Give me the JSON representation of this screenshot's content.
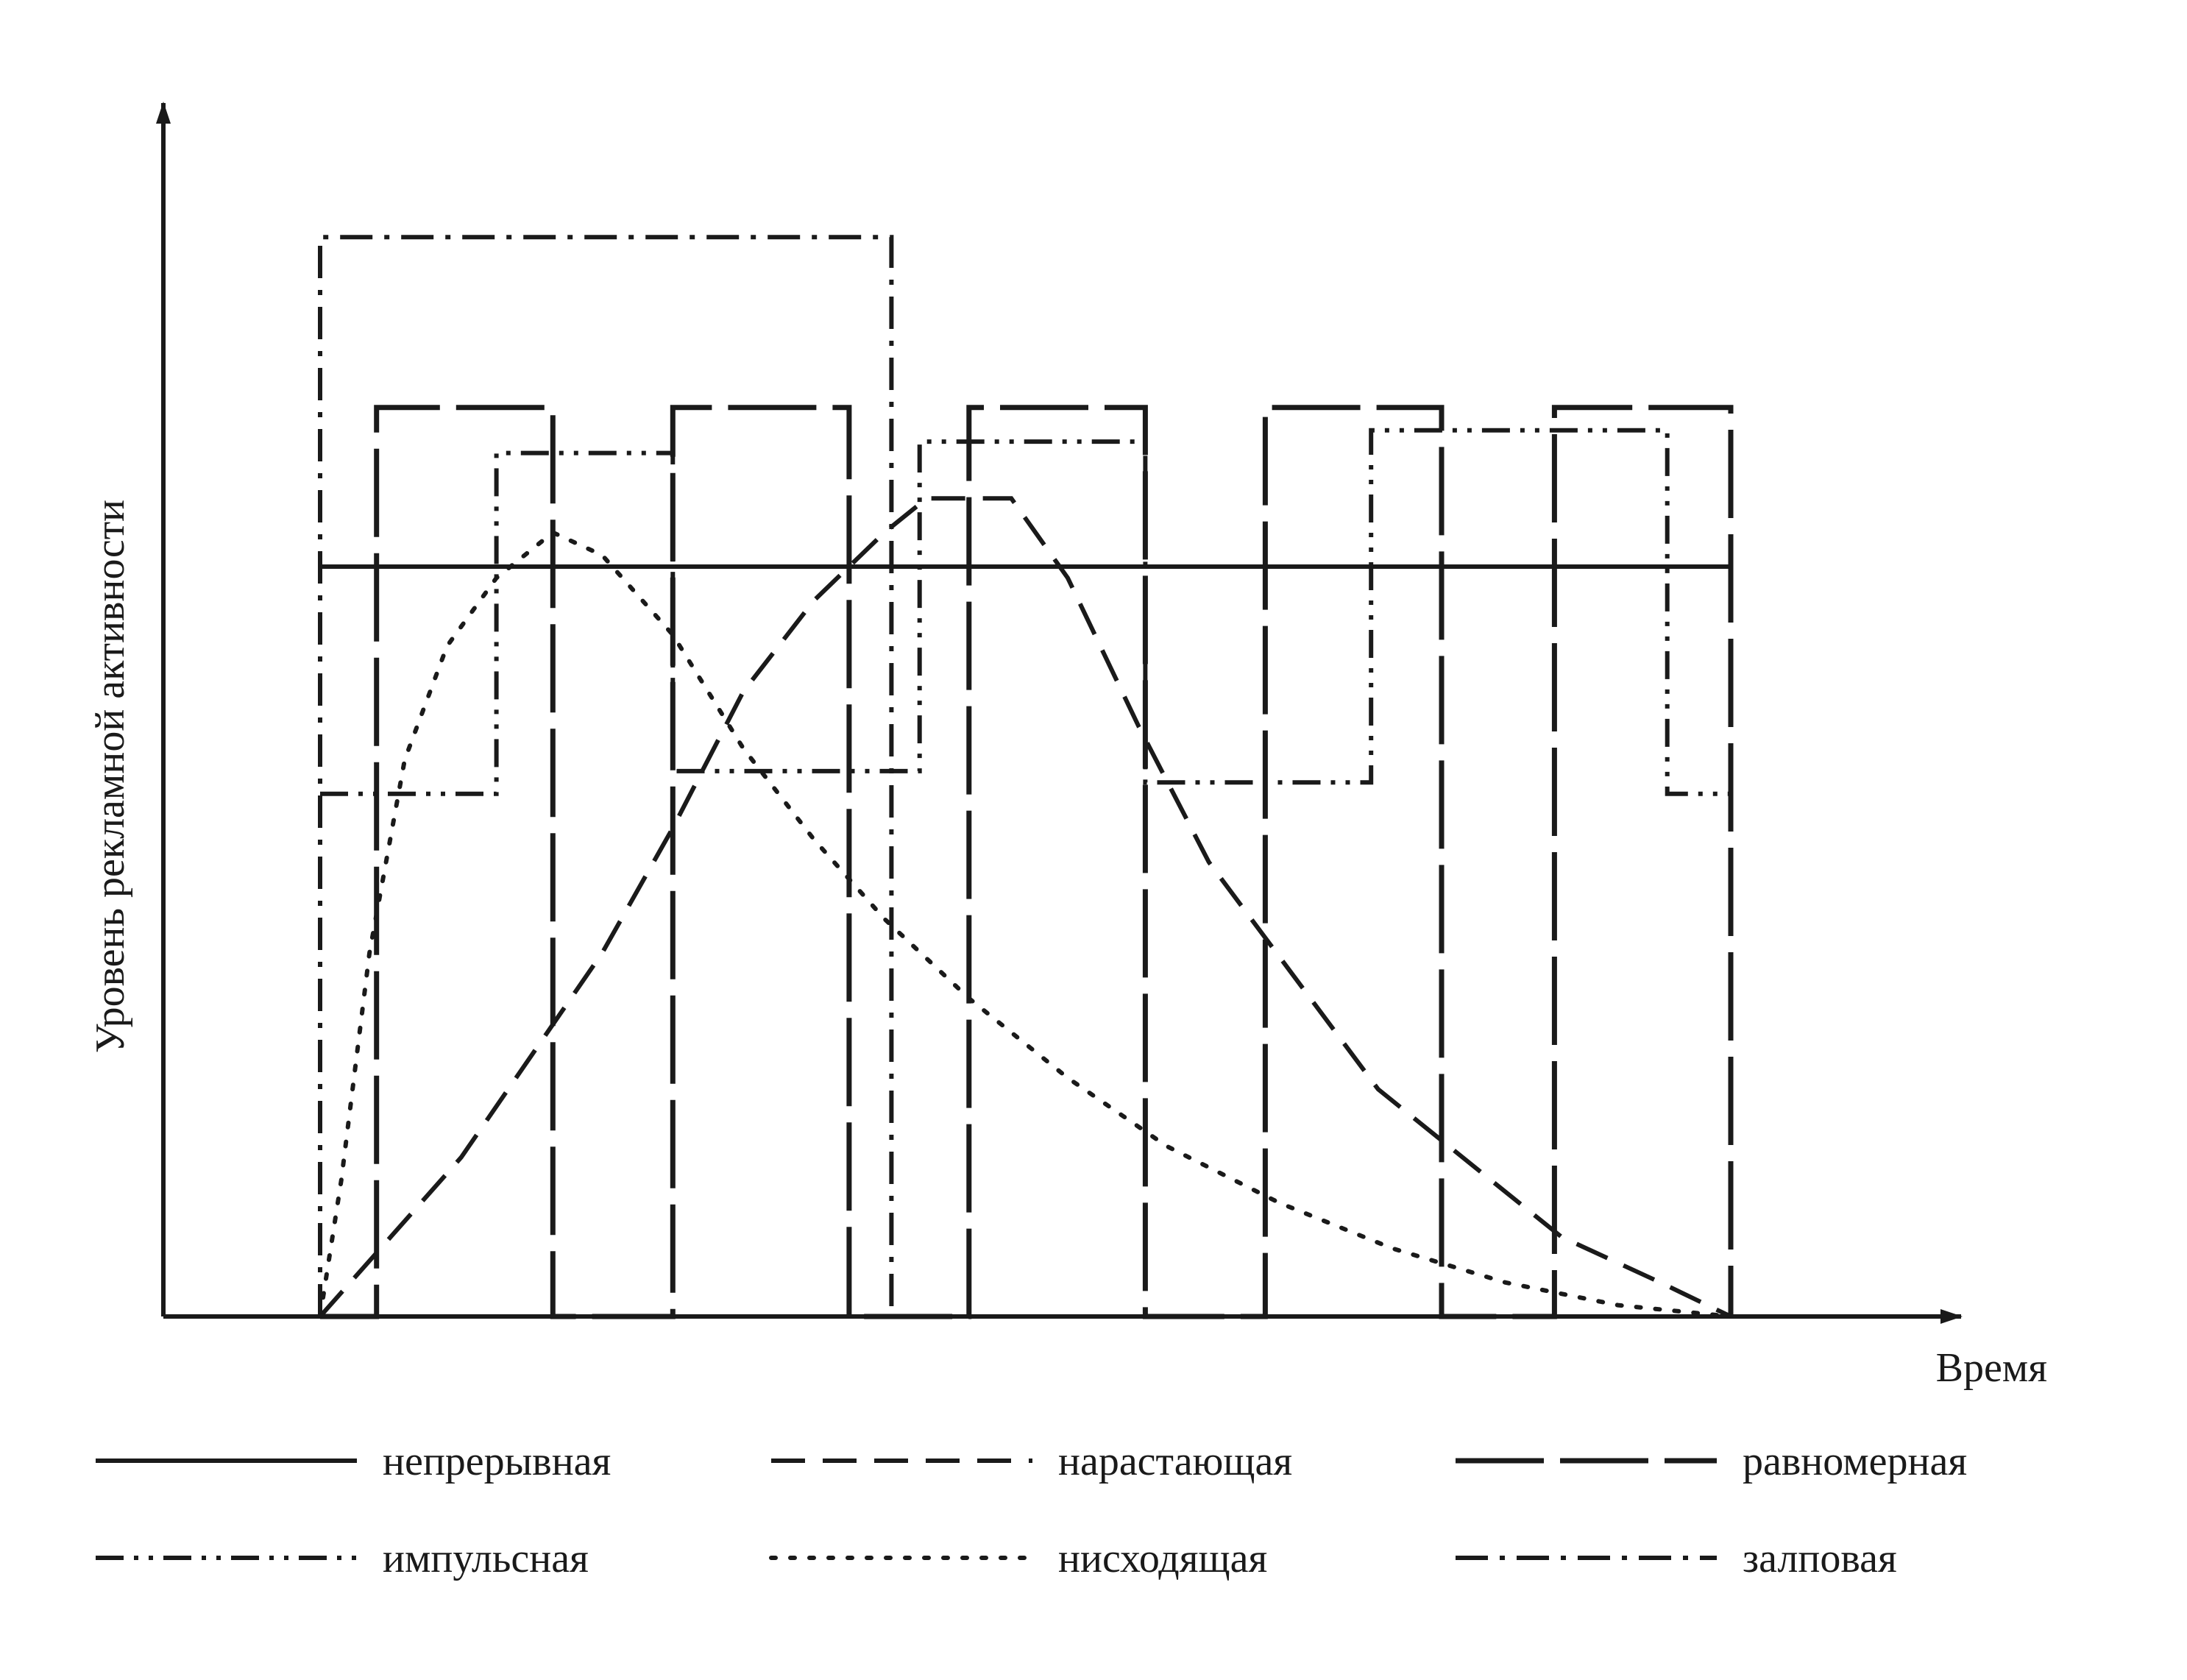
{
  "chart_data": {
    "type": "line",
    "title": "",
    "xlabel": "Время",
    "ylabel": "Уровень рекламной активности",
    "grid": false,
    "legend_position": "bottom",
    "x_range": [
      0,
      10
    ],
    "y_range": [
      0,
      10
    ],
    "series": [
      {
        "name": "непрерывная",
        "style": "solid",
        "points": [
          [
            0,
            6.6
          ],
          [
            10,
            6.6
          ]
        ]
      },
      {
        "name": "нарастающая",
        "style": "dashed",
        "points": [
          [
            0,
            0
          ],
          [
            0.5,
            0.7
          ],
          [
            1,
            1.4
          ],
          [
            1.5,
            2.3
          ],
          [
            2,
            3.2
          ],
          [
            2.5,
            4.3
          ],
          [
            3,
            5.5
          ],
          [
            3.5,
            6.3
          ],
          [
            4,
            6.9
          ],
          [
            4.3,
            7.2
          ],
          [
            4.9,
            7.2
          ],
          [
            5.3,
            6.5
          ],
          [
            5.8,
            5.2
          ],
          [
            6.3,
            4.0
          ],
          [
            6.9,
            3.0
          ],
          [
            7.5,
            2.0
          ],
          [
            8.2,
            1.3
          ],
          [
            8.8,
            0.7
          ],
          [
            9.5,
            0.3
          ],
          [
            10,
            0
          ]
        ]
      },
      {
        "name": "равномерная",
        "style": "long-dash",
        "points": [
          [
            0,
            0
          ],
          [
            0.4,
            0
          ],
          [
            0.4,
            8.0
          ],
          [
            1.65,
            8.0
          ],
          [
            1.65,
            0
          ],
          [
            2.5,
            0
          ],
          [
            2.5,
            8.0
          ],
          [
            3.75,
            8.0
          ],
          [
            3.75,
            0
          ],
          [
            4.6,
            0
          ],
          [
            4.6,
            8.0
          ],
          [
            5.85,
            8.0
          ],
          [
            5.85,
            0
          ],
          [
            6.7,
            0
          ],
          [
            6.7,
            8.0
          ],
          [
            7.95,
            8.0
          ],
          [
            7.95,
            0
          ],
          [
            8.75,
            0
          ],
          [
            8.75,
            8.0
          ],
          [
            10,
            8.0
          ],
          [
            10,
            0
          ]
        ]
      },
      {
        "name": "импульсная",
        "style": "dash-dot-dot",
        "points": [
          [
            0,
            4.6
          ],
          [
            1.25,
            4.6
          ],
          [
            1.25,
            7.6
          ],
          [
            2.5,
            7.6
          ],
          [
            2.5,
            4.8
          ],
          [
            4.25,
            4.8
          ],
          [
            4.25,
            7.7
          ],
          [
            5.85,
            7.7
          ],
          [
            5.85,
            4.7
          ],
          [
            7.45,
            4.7
          ],
          [
            7.45,
            7.8
          ],
          [
            9.55,
            7.8
          ],
          [
            9.55,
            4.6
          ],
          [
            10,
            4.6
          ]
        ]
      },
      {
        "name": "нисходящая",
        "style": "dotted",
        "points": [
          [
            0,
            0
          ],
          [
            0.15,
            1.2
          ],
          [
            0.35,
            3.2
          ],
          [
            0.6,
            4.9
          ],
          [
            0.9,
            5.9
          ],
          [
            1.25,
            6.5
          ],
          [
            1.65,
            6.9
          ],
          [
            2.0,
            6.7
          ],
          [
            2.5,
            6.0
          ],
          [
            3.0,
            5.0
          ],
          [
            3.5,
            4.2
          ],
          [
            4.0,
            3.5
          ],
          [
            4.6,
            2.8
          ],
          [
            5.3,
            2.1
          ],
          [
            6.0,
            1.5
          ],
          [
            6.8,
            1.0
          ],
          [
            7.6,
            0.6
          ],
          [
            8.4,
            0.3
          ],
          [
            9.2,
            0.1
          ],
          [
            10,
            0
          ]
        ]
      },
      {
        "name": "залповая",
        "style": "dash-dot",
        "points": [
          [
            0,
            0
          ],
          [
            0,
            9.5
          ],
          [
            4.05,
            9.5
          ],
          [
            4.05,
            0
          ]
        ]
      }
    ]
  }
}
